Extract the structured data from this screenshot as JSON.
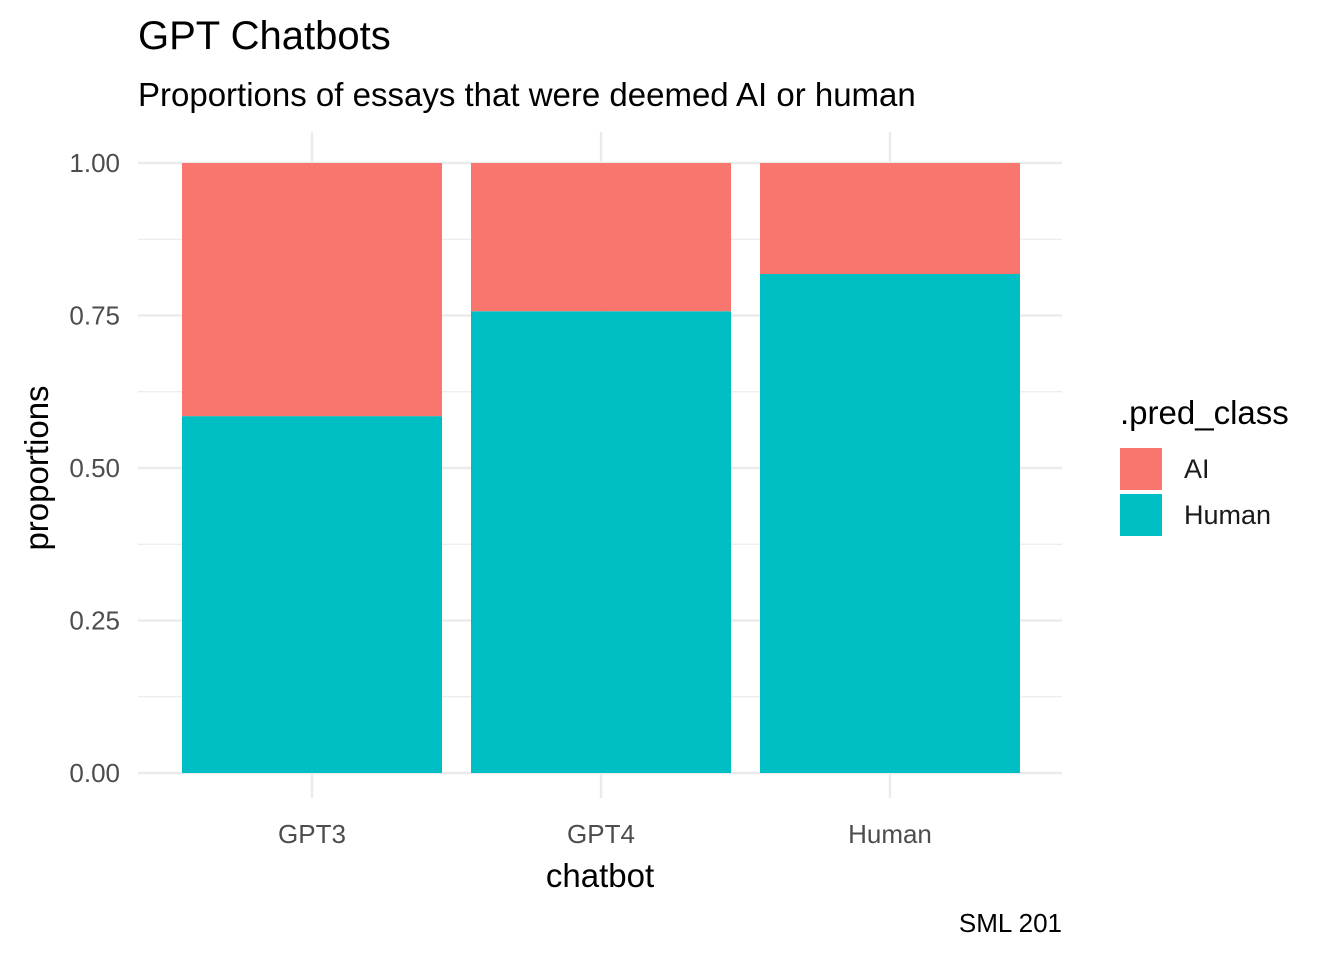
{
  "chart_data": {
    "type": "bar",
    "stacked": true,
    "title": "GPT Chatbots",
    "subtitle": "Proportions of essays that were deemed AI or human",
    "caption": "SML 201",
    "xlabel": "chatbot",
    "ylabel": "proportions",
    "ylim": [
      0,
      1
    ],
    "yticks": [
      "0.00",
      "0.25",
      "0.50",
      "0.75",
      "1.00"
    ],
    "ytick_values": [
      0,
      0.25,
      0.5,
      0.75,
      1.0
    ],
    "categories": [
      "GPT3",
      "GPT4",
      "Human"
    ],
    "series": [
      {
        "name": "Human",
        "values": [
          0.585,
          0.757,
          0.818
        ],
        "color": "#00BFC4"
      },
      {
        "name": "AI",
        "values": [
          0.415,
          0.243,
          0.182
        ],
        "color": "#F8766D"
      }
    ],
    "legend_title": ".pred_class",
    "legend_order": [
      "AI",
      "Human"
    ],
    "legend_position": "right",
    "grid": true
  }
}
